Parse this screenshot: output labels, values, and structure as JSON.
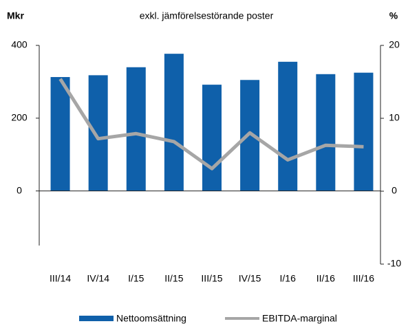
{
  "chart_data": {
    "type": "bar",
    "title": "exkl. jämförelsestörande poster",
    "y_label": "Mkr",
    "y2_label": "%",
    "categories": [
      "III/14",
      "IV/14",
      "I/15",
      "II/15",
      "III/15",
      "IV/15",
      "I/16",
      "II/16",
      "III/16"
    ],
    "series": [
      {
        "name": "Nettoomsättning",
        "type": "bar",
        "color": "#0f60aa",
        "values": [
          313,
          318,
          340,
          377,
          292,
          305,
          355,
          321,
          325
        ]
      },
      {
        "name": "EBITDA-marginal",
        "type": "line",
        "color": "#a6a6a6",
        "axis": "y2",
        "values": [
          15.4,
          7.2,
          7.9,
          6.8,
          3.1,
          8.0,
          4.3,
          6.3,
          6.1
        ]
      }
    ],
    "ylim": [
      -150,
      400
    ],
    "yticks": [
      0,
      200,
      400
    ],
    "y2lim": [
      -10,
      20
    ],
    "y2ticks": [
      -10,
      0,
      10,
      20
    ],
    "legend": "bottom"
  }
}
